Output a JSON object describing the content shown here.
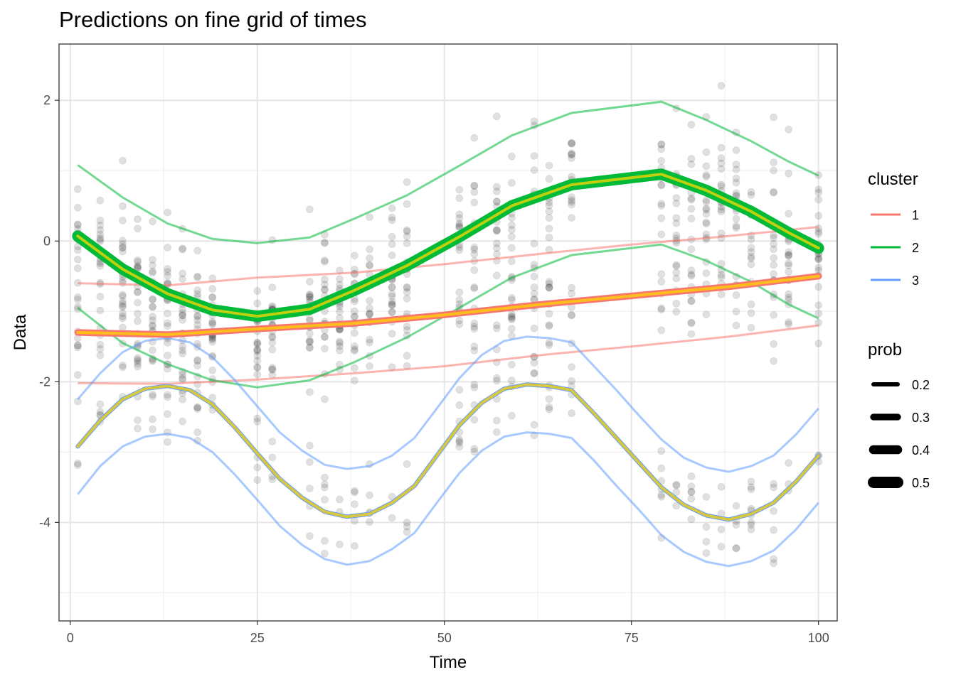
{
  "chart_data": {
    "type": "line",
    "title": "Predictions on fine grid of times",
    "xlabel": "Time",
    "ylabel": "Data",
    "xlim": [
      -1.5,
      102.5
    ],
    "ylim": [
      -5.4,
      2.8
    ],
    "xticks": [
      0,
      25,
      50,
      75,
      100
    ],
    "xtick_labels": [
      "0",
      "25",
      "50",
      "75",
      "100"
    ],
    "yticks": [
      -4,
      -2,
      0,
      2
    ],
    "ytick_labels": [
      "-4",
      "-2",
      "0",
      "2"
    ],
    "grid": true,
    "legend": {
      "position": "right",
      "cluster_title": "cluster",
      "prob_title": "prob",
      "cluster_entries": [
        {
          "label": "1",
          "color": "#F8766D"
        },
        {
          "label": "2",
          "color": "#00BA38"
        },
        {
          "label": "3",
          "color": "#619CFF"
        }
      ],
      "prob_entries": [
        {
          "label": "0.2",
          "value": 0.2
        },
        {
          "label": "0.3",
          "value": 0.3
        },
        {
          "label": "0.4",
          "value": 0.4
        },
        {
          "label": "0.5",
          "value": 0.5
        }
      ]
    },
    "observation_times": [
      1,
      4,
      7,
      9,
      11,
      13,
      15,
      17,
      19,
      25,
      27,
      32,
      34,
      36,
      38,
      40,
      43,
      45,
      52,
      54,
      57,
      59,
      62,
      64,
      67,
      79,
      81,
      83,
      85,
      87,
      89,
      91,
      94,
      96,
      100
    ],
    "points_color": "#000000",
    "points_opacity": 0.12,
    "highlight_color": "#FFD700",
    "series": [
      {
        "name": "1",
        "color": "#F8766D",
        "prob": 0.3,
        "x": [
          1,
          13,
          25,
          38,
          50,
          63,
          75,
          88,
          100
        ],
        "mean": [
          -1.3,
          -1.33,
          -1.25,
          -1.17,
          -1.05,
          -0.9,
          -0.78,
          -0.65,
          -0.5
        ],
        "lower": [
          -2.02,
          -2.03,
          -1.97,
          -1.88,
          -1.78,
          -1.62,
          -1.5,
          -1.36,
          -1.2
        ],
        "upper": [
          -0.6,
          -0.63,
          -0.52,
          -0.45,
          -0.33,
          -0.18,
          -0.05,
          0.07,
          0.2
        ]
      },
      {
        "name": "2",
        "color": "#00BA38",
        "prob": 0.5,
        "x": [
          1,
          7,
          13,
          19,
          25,
          32,
          38,
          45,
          52,
          59,
          67,
          79,
          85,
          91,
          96,
          100
        ],
        "mean": [
          0.07,
          -0.4,
          -0.75,
          -0.98,
          -1.07,
          -0.97,
          -0.7,
          -0.35,
          0.06,
          0.5,
          0.8,
          0.95,
          0.72,
          0.42,
          0.12,
          -0.1
        ],
        "lower": [
          -0.95,
          -1.45,
          -1.75,
          -1.98,
          -2.08,
          -1.98,
          -1.72,
          -1.37,
          -0.95,
          -0.52,
          -0.2,
          -0.05,
          -0.28,
          -0.58,
          -0.9,
          -1.1
        ],
        "upper": [
          1.08,
          0.62,
          0.25,
          0.03,
          -0.03,
          0.05,
          0.32,
          0.65,
          1.07,
          1.5,
          1.82,
          1.98,
          1.72,
          1.42,
          1.13,
          0.93
        ]
      },
      {
        "name": "3",
        "color": "#619CFF",
        "prob": 0.2,
        "x": [
          1,
          4,
          7,
          10,
          13,
          16,
          19,
          22,
          25,
          28,
          31,
          34,
          37,
          40,
          43,
          46,
          49,
          52,
          55,
          58,
          61,
          64,
          67,
          70,
          73,
          76,
          79,
          82,
          85,
          88,
          91,
          94,
          97,
          100
        ],
        "mean": [
          -2.92,
          -2.55,
          -2.25,
          -2.1,
          -2.06,
          -2.12,
          -2.32,
          -2.65,
          -3.02,
          -3.38,
          -3.65,
          -3.85,
          -3.92,
          -3.88,
          -3.72,
          -3.48,
          -3.05,
          -2.62,
          -2.3,
          -2.1,
          -2.04,
          -2.06,
          -2.12,
          -2.45,
          -2.8,
          -3.15,
          -3.5,
          -3.75,
          -3.9,
          -3.96,
          -3.88,
          -3.72,
          -3.42,
          -3.05
        ],
        "lower": [
          -3.6,
          -3.2,
          -2.92,
          -2.78,
          -2.74,
          -2.8,
          -3.0,
          -3.32,
          -3.68,
          -4.05,
          -4.32,
          -4.52,
          -4.6,
          -4.55,
          -4.38,
          -4.15,
          -3.72,
          -3.3,
          -2.98,
          -2.78,
          -2.72,
          -2.74,
          -2.8,
          -3.12,
          -3.48,
          -3.82,
          -4.18,
          -4.42,
          -4.56,
          -4.62,
          -4.55,
          -4.4,
          -4.1,
          -3.72
        ],
        "upper": [
          -2.25,
          -1.88,
          -1.58,
          -1.42,
          -1.38,
          -1.44,
          -1.65,
          -1.98,
          -2.35,
          -2.72,
          -2.98,
          -3.18,
          -3.24,
          -3.2,
          -3.05,
          -2.8,
          -2.38,
          -1.95,
          -1.62,
          -1.42,
          -1.36,
          -1.38,
          -1.44,
          -1.78,
          -2.12,
          -2.48,
          -2.82,
          -3.08,
          -3.22,
          -3.28,
          -3.2,
          -3.05,
          -2.75,
          -2.38
        ]
      }
    ]
  }
}
